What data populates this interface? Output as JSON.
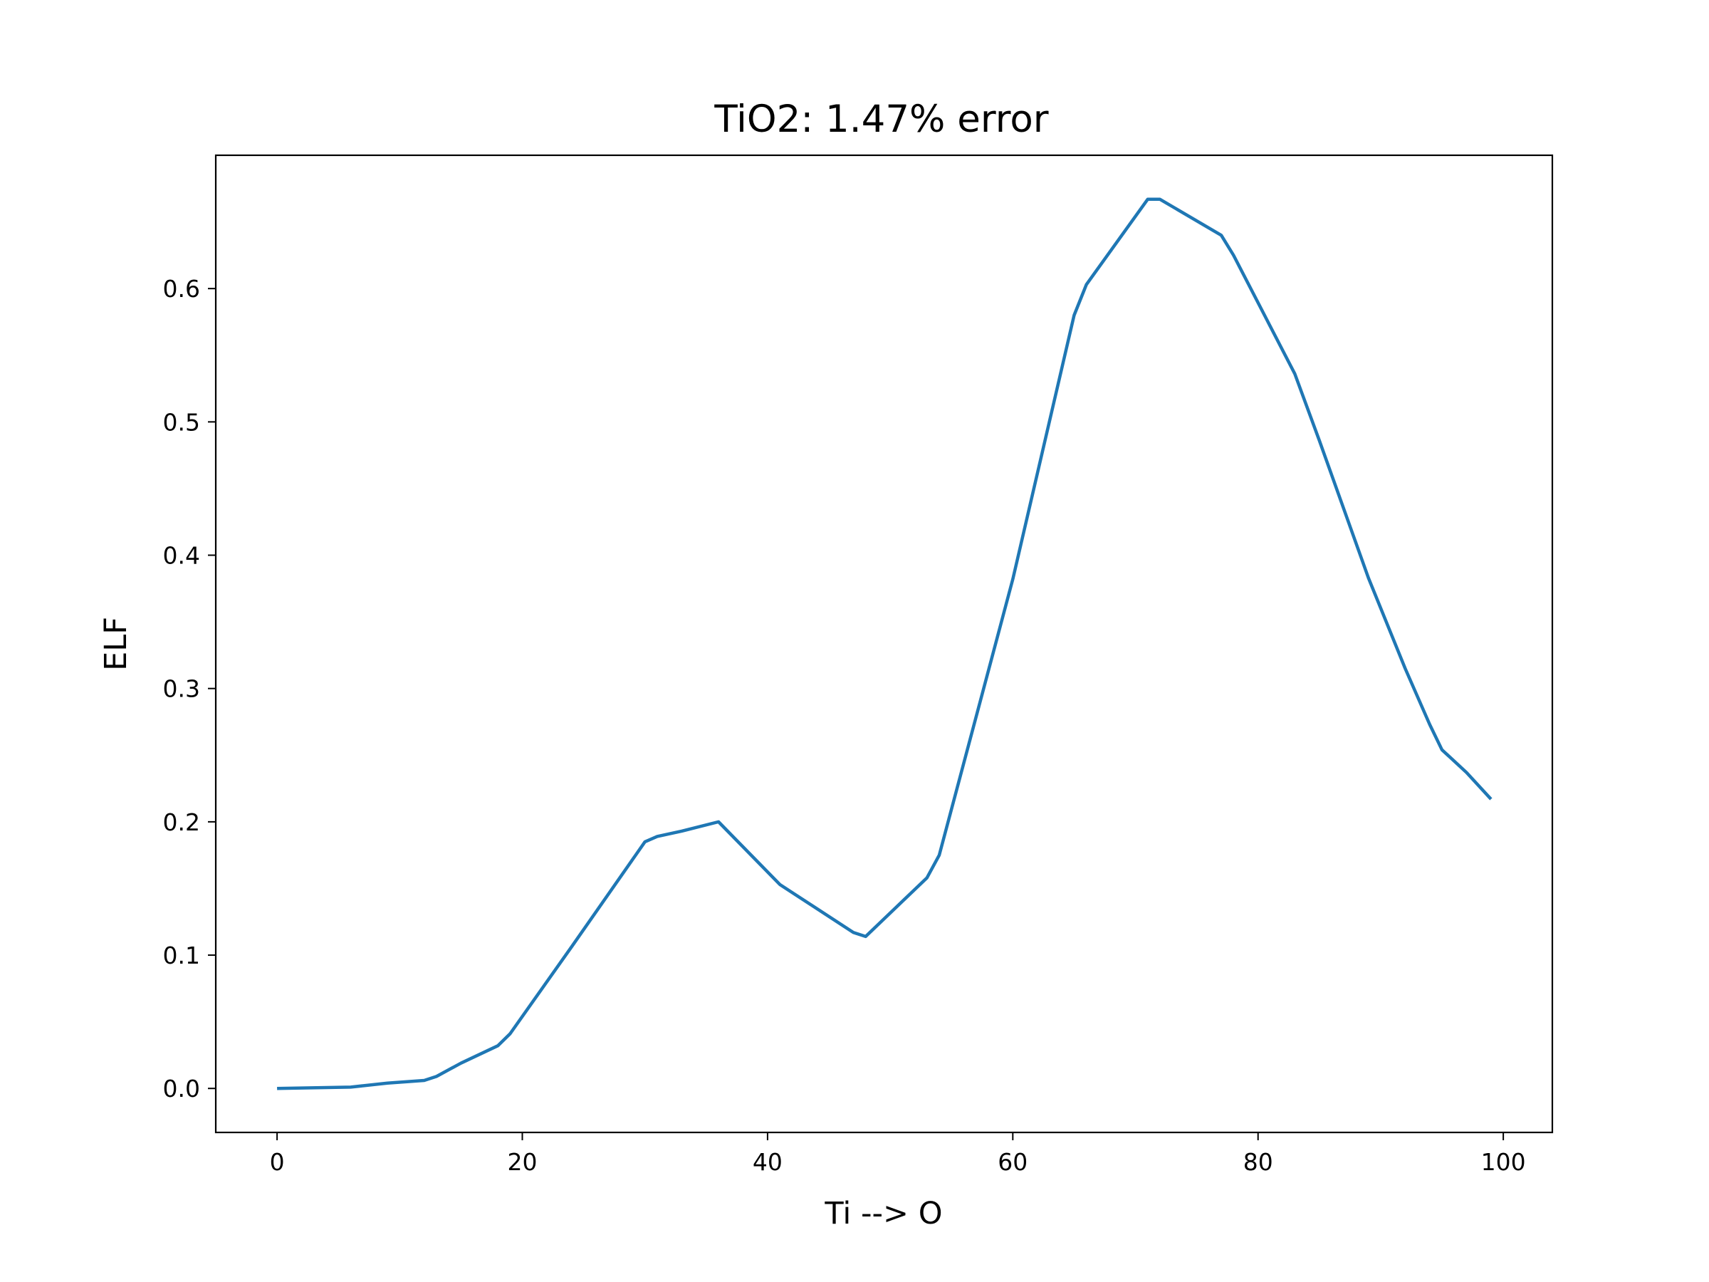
{
  "chart_data": {
    "type": "line",
    "title": "TiO2: 1.47% error",
    "xlabel": "Ti --> O",
    "ylabel": "ELF",
    "xlim": [
      -5,
      104
    ],
    "ylim": [
      -0.033,
      0.7
    ],
    "x_ticks": [
      0,
      20,
      40,
      60,
      80,
      100
    ],
    "y_ticks": [
      0.0,
      0.1,
      0.2,
      0.3,
      0.4,
      0.5,
      0.6
    ],
    "x_tick_labels": [
      "0",
      "20",
      "40",
      "60",
      "80",
      "100"
    ],
    "y_tick_labels": [
      "0.0",
      "0.1",
      "0.2",
      "0.3",
      "0.4",
      "0.5",
      "0.6"
    ],
    "grid": false,
    "line_color": "#1f77b4",
    "series": [
      {
        "x": [
          0,
          6,
          7,
          9,
          12,
          13,
          15,
          18,
          19,
          24,
          30,
          31,
          33,
          36,
          41,
          42,
          47,
          48,
          53,
          54,
          60,
          65,
          66,
          71,
          72,
          77,
          78,
          83,
          85,
          89,
          92,
          94,
          95,
          97,
          99
        ],
        "values": [
          0.0,
          0.001,
          0.002,
          0.004,
          0.006,
          0.009,
          0.019,
          0.032,
          0.041,
          0.106,
          0.185,
          0.189,
          0.193,
          0.2,
          0.153,
          0.147,
          0.117,
          0.114,
          0.158,
          0.175,
          0.382,
          0.58,
          0.603,
          0.667,
          0.667,
          0.64,
          0.625,
          0.536,
          0.486,
          0.383,
          0.315,
          0.273,
          0.254,
          0.237,
          0.217
        ]
      }
    ]
  }
}
